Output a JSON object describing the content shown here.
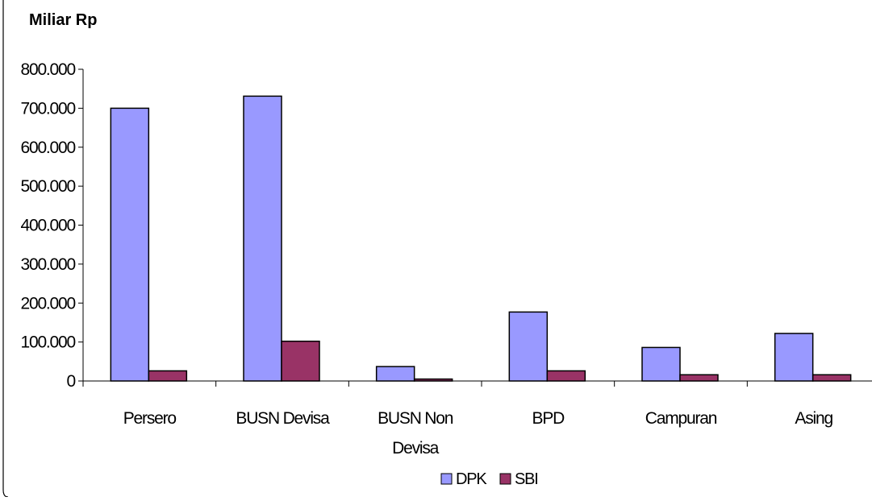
{
  "chart_data": {
    "type": "bar",
    "ylabel": "Miliar Rp",
    "categories": [
      [
        "Persero"
      ],
      [
        "BUSN Devisa"
      ],
      [
        "BUSN Non",
        "Devisa"
      ],
      [
        "BPD"
      ],
      [
        "Campuran"
      ],
      [
        "Asing"
      ]
    ],
    "series": [
      {
        "name": "DPK",
        "color": "#9999ff",
        "values": [
          700000,
          731000,
          37000,
          177000,
          86000,
          122000
        ]
      },
      {
        "name": "SBI",
        "color": "#993366",
        "values": [
          26000,
          102000,
          5000,
          26000,
          16000,
          16000
        ]
      }
    ],
    "ylim": [
      0,
      800000
    ],
    "yticks": [
      "0",
      "100.000",
      "200.000",
      "300.000",
      "400.000",
      "500.000",
      "600.000",
      "700.000",
      "800.000"
    ],
    "grid": false,
    "legend_position": "bottom"
  }
}
